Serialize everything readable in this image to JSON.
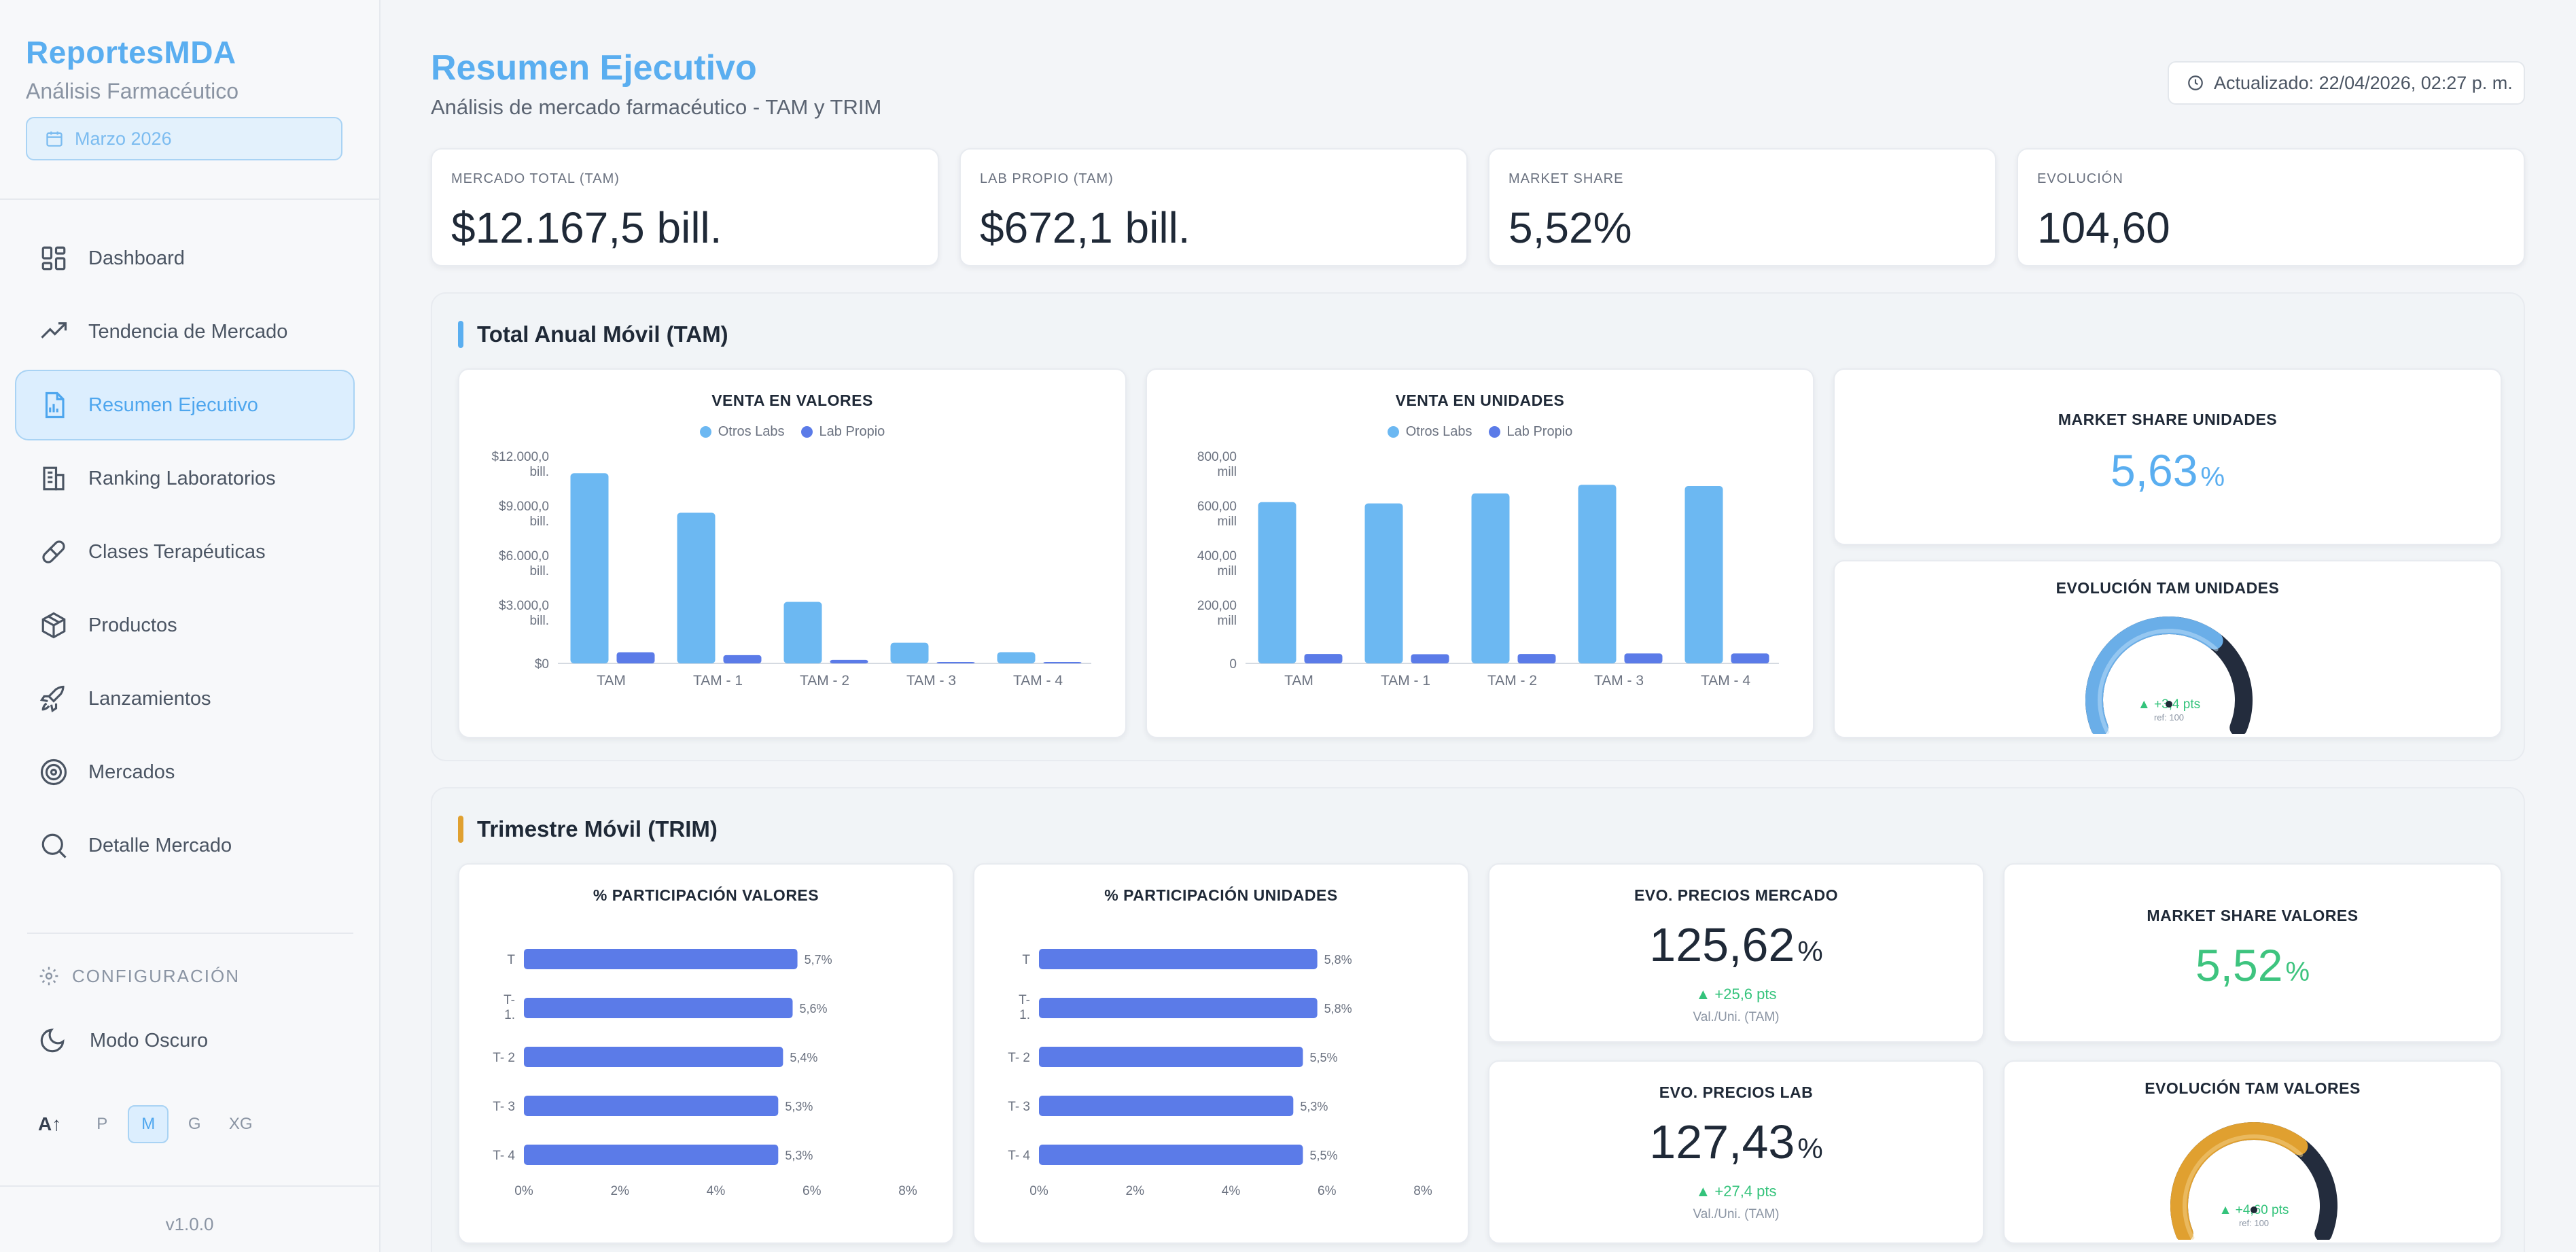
{
  "sidebar": {
    "brand_title": "ReportesMDA",
    "brand_subtitle": "Análisis Farmacéutico",
    "period": "Marzo 2026",
    "items": [
      {
        "label": "Dashboard",
        "icon": "dashboard-icon"
      },
      {
        "label": "Tendencia de Mercado",
        "icon": "trending-up-icon"
      },
      {
        "label": "Resumen Ejecutivo",
        "icon": "report-icon",
        "active": true
      },
      {
        "label": "Ranking Laboratorios",
        "icon": "building-icon"
      },
      {
        "label": "Clases Terapéuticas",
        "icon": "pill-icon"
      },
      {
        "label": "Productos",
        "icon": "box-icon"
      },
      {
        "label": "Lanzamientos",
        "icon": "rocket-icon"
      },
      {
        "label": "Mercados",
        "icon": "target-icon"
      },
      {
        "label": "Detalle Mercado",
        "icon": "search-icon"
      }
    ],
    "config_title": "CONFIGURACIÓN",
    "dark_mode": "Modo Oscuro",
    "font_sizes": [
      "P",
      "M",
      "G",
      "XG"
    ],
    "font_size_selected": "M",
    "version": "v1.0.0"
  },
  "header": {
    "title": "Resumen Ejecutivo",
    "subtitle": "Análisis de mercado farmacéutico - TAM y TRIM",
    "updated": "Actualizado: 22/04/2026, 02:27 p. m."
  },
  "kpis": [
    {
      "label": "MERCADO TOTAL (TAM)",
      "value": "$12.167,5 bill."
    },
    {
      "label": "LAB PROPIO (TAM)",
      "value": "$672,1 bill."
    },
    {
      "label": "MARKET SHARE",
      "value": "5,52%"
    },
    {
      "label": "EVOLUCIÓN",
      "value": "104,60"
    }
  ],
  "tam": {
    "title": "Total Anual Móvil (TAM)",
    "share_units": {
      "title": "MARKET SHARE UNIDADES",
      "value": "5,63",
      "unit": "%"
    },
    "evo_units": {
      "title": "EVOLUCIÓN TAM UNIDADES",
      "delta": "+3,4 pts",
      "ref": "ref: 100",
      "min": "0",
      "max": "155"
    }
  },
  "trim": {
    "title": "Trimestre Móvil (TRIM)",
    "precios_mercado": {
      "title": "EVO. PRECIOS MERCADO",
      "value": "125,62",
      "unit": "%",
      "delta": "+25,6 pts",
      "foot": "Val./Uni. (TAM)"
    },
    "precios_lab": {
      "title": "EVO. PRECIOS LAB",
      "value": "127,43",
      "unit": "%",
      "delta": "+27,4 pts",
      "foot": "Val./Uni. (TAM)"
    },
    "share_valores": {
      "title": "MARKET SHARE VALORES",
      "value": "5,52",
      "unit": "%"
    },
    "evo_valores": {
      "title": "EVOLUCIÓN TAM VALORES",
      "delta": "+4,60 pts",
      "ref": "ref: 100",
      "min": "0",
      "max": "157"
    }
  },
  "colors": {
    "otros": "#6cb8f2",
    "propio": "#5b7be8",
    "orange": "#e0a030",
    "gauge_dark": "#232c3d"
  },
  "chart_data": [
    {
      "type": "bar",
      "title": "VENTA EN VALORES",
      "categories": [
        "TAM",
        "TAM - 1",
        "TAM - 2",
        "TAM - 3",
        "TAM - 4"
      ],
      "series": [
        {
          "name": "Otros Labs",
          "values": [
            11495,
            9110,
            3720,
            1250,
            680
          ]
        },
        {
          "name": "Lab Propio",
          "values": [
            672,
            500,
            210,
            70,
            38
          ]
        }
      ],
      "yticks": [
        "$0",
        "$3.000,0 bill.",
        "$6.000,0 bill.",
        "$9.000,0 bill.",
        "$12.000,0 bill."
      ],
      "ylim": [
        0,
        12000
      ]
    },
    {
      "type": "bar",
      "title": "VENTA EN UNIDADES",
      "categories": [
        "TAM",
        "TAM - 1",
        "TAM - 2",
        "TAM - 3",
        "TAM - 4"
      ],
      "series": [
        {
          "name": "Otros Labs",
          "values": [
            650,
            645,
            685,
            720,
            715
          ]
        },
        {
          "name": "Lab Propio",
          "values": [
            38,
            37,
            38,
            40,
            40
          ]
        }
      ],
      "yticks": [
        "0",
        "200,00 mill",
        "400,00 mill",
        "600,00 mill",
        "800,00 mill"
      ],
      "ylim": [
        0,
        800
      ]
    },
    {
      "type": "bar",
      "orientation": "horizontal",
      "title": "% PARTICIPACIÓN VALORES",
      "categories": [
        "T",
        "T- 1.",
        "T- 2",
        "T- 3",
        "T- 4"
      ],
      "values": [
        5.7,
        5.6,
        5.4,
        5.3,
        5.3
      ],
      "labels": [
        "5,7%",
        "5,6%",
        "5,4%",
        "5,3%",
        "5,3%"
      ],
      "xticks": [
        "0%",
        "2%",
        "4%",
        "6%",
        "8%"
      ],
      "xlim": [
        0,
        8
      ]
    },
    {
      "type": "bar",
      "orientation": "horizontal",
      "title": "% PARTICIPACIÓN UNIDADES",
      "categories": [
        "T",
        "T- 1.",
        "T- 2",
        "T- 3",
        "T- 4"
      ],
      "values": [
        5.8,
        5.8,
        5.5,
        5.3,
        5.5
      ],
      "labels": [
        "5,8%",
        "5,8%",
        "5,5%",
        "5,3%",
        "5,5%"
      ],
      "xticks": [
        "0%",
        "2%",
        "4%",
        "6%",
        "8%"
      ],
      "xlim": [
        0,
        8
      ]
    },
    {
      "type": "gauge",
      "title": "EVOLUCIÓN TAM UNIDADES",
      "value": 103.4,
      "min": 0,
      "max": 155,
      "ref": 100
    },
    {
      "type": "gauge",
      "title": "EVOLUCIÓN TAM VALORES",
      "value": 104.6,
      "min": 0,
      "max": 157,
      "ref": 100
    }
  ]
}
